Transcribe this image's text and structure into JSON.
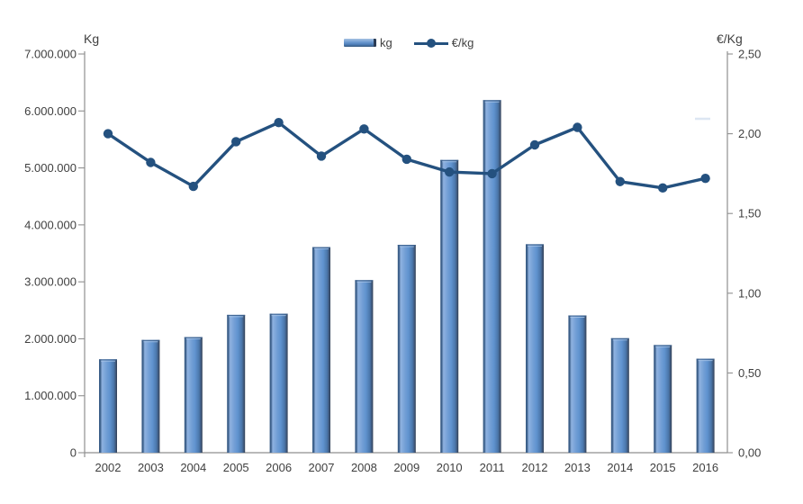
{
  "chart_data": {
    "type": "bar",
    "subtype": "combo-bar-line-dual-axis",
    "categories": [
      "2002",
      "2003",
      "2004",
      "2005",
      "2006",
      "2007",
      "2008",
      "2009",
      "2010",
      "2011",
      "2012",
      "2013",
      "2014",
      "2015",
      "2016"
    ],
    "series": [
      {
        "name": "kg",
        "type": "bar",
        "axis": "left",
        "values": [
          1640000,
          1980000,
          2030000,
          2420000,
          2440000,
          3610000,
          3030000,
          3650000,
          5140000,
          6190000,
          3660000,
          2410000,
          2010000,
          1890000,
          1650000
        ]
      },
      {
        "name": "€/kg",
        "type": "line",
        "axis": "right",
        "values": [
          2.0,
          1.82,
          1.67,
          1.95,
          2.07,
          1.86,
          2.03,
          1.84,
          1.76,
          1.75,
          1.93,
          2.04,
          1.7,
          1.66,
          1.72
        ]
      }
    ],
    "left_axis": {
      "title": "Kg",
      "min": 0,
      "max": 7000000,
      "tick_step": 1000000,
      "tick_labels": [
        "7.000.000",
        "6.000.000",
        "5.000.000",
        "4.000.000",
        "3.000.000",
        "2.000.000",
        "1.000.000",
        "0"
      ]
    },
    "right_axis": {
      "title": "€/Kg",
      "min": 0,
      "max": 2.5,
      "tick_step": 0.5,
      "tick_labels": [
        "2,50",
        "2,00",
        "1,50",
        "1,00",
        "0,50",
        "0,00"
      ]
    },
    "legend": {
      "position": "top-center",
      "entries": [
        {
          "label": "kg",
          "marker": "bar-swatch"
        },
        {
          "label": "€/kg",
          "marker": "line-marker-swatch"
        }
      ]
    },
    "grid": "off",
    "colors": {
      "bar_center": "#6093cf",
      "bar_highlight": "#8fb2e0",
      "bar_edge_left": "#3b5e88",
      "bar_edge_right": "#2e3b4f",
      "line": "#24517f",
      "axis": "#8f8f8f",
      "text": "#3f3f3f"
    }
  }
}
